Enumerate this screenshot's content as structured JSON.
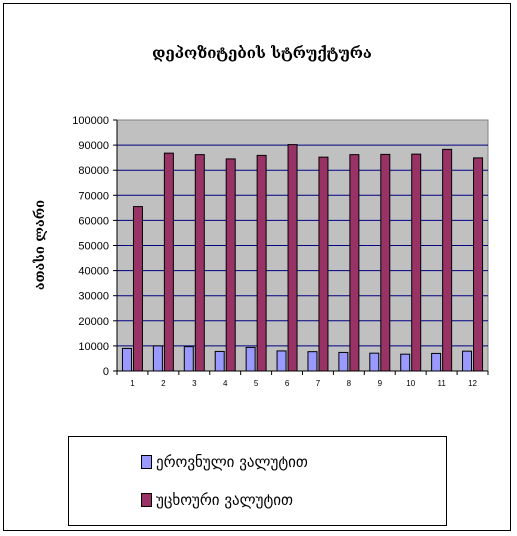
{
  "chart_data": {
    "type": "bar",
    "title": "დეპოზიტების სტრუქტურა",
    "ylabel": "ათასი ლარი",
    "xlabel": "",
    "categories": [
      "1",
      "2",
      "3",
      "4",
      "5",
      "6",
      "7",
      "8",
      "9",
      "10",
      "11",
      "12"
    ],
    "series": [
      {
        "name": "ეროვნული ვალუტით",
        "color": "#9999ff",
        "values": [
          9000,
          10000,
          9700,
          7800,
          9400,
          8000,
          7700,
          7400,
          7100,
          6700,
          7000,
          7900
        ]
      },
      {
        "name": "უცხოური ვალუტით",
        "color": "#993366",
        "values": [
          65500,
          86800,
          86200,
          84500,
          85900,
          90200,
          85200,
          86200,
          86300,
          86400,
          88300,
          84900
        ]
      }
    ],
    "ylim": [
      0,
      100000
    ],
    "yticks": [
      "0",
      "10000",
      "20000",
      "30000",
      "40000",
      "50000",
      "60000",
      "70000",
      "80000",
      "90000",
      "100000"
    ],
    "grid": true,
    "plot_background": "#c0c0c0",
    "legend_position": "bottom"
  }
}
